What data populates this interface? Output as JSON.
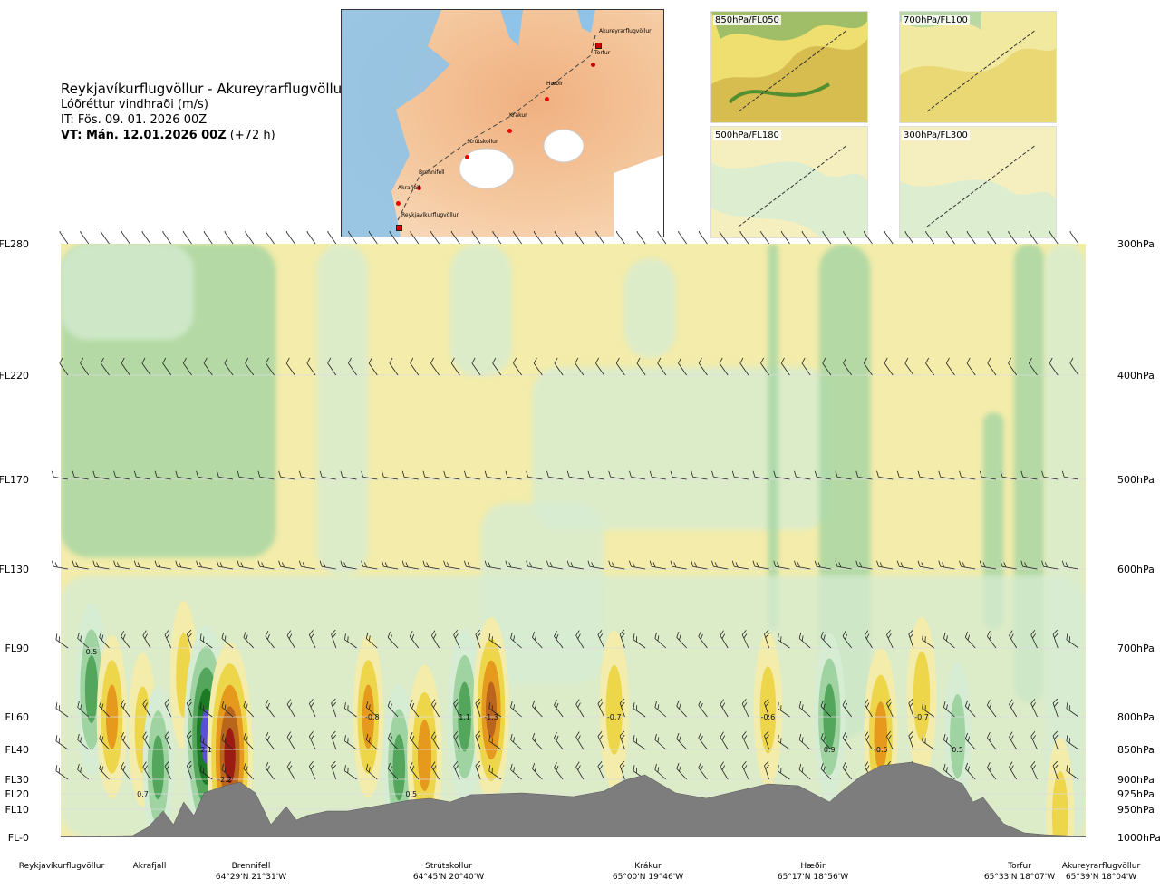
{
  "header": {
    "route": "Reykjavíkurflugvöllur - Akureyrarflugvöllur",
    "subtitle": "Lóðréttur vindhraði (m/s)",
    "it": "IT: Fös. 09. 01. 2026 00Z",
    "vt": "VT: Mán. 12.01.2026 00Z",
    "vt_rel": "(+72 h)"
  },
  "route_map": {
    "points": [
      "Akureyrarflugvöllur",
      "Torfur",
      "Hæðir",
      "Krákur",
      "Strútskollur",
      "Brennifell",
      "Akrafjall",
      "Reykjavíkurflugvöllur"
    ]
  },
  "level_maps": [
    {
      "label": "850hPa/FL050"
    },
    {
      "label": "700hPa/FL100"
    },
    {
      "label": "500hPa/FL180"
    },
    {
      "label": "300hPa/FL300"
    }
  ],
  "chart_data": {
    "type": "heatmap",
    "title": "Lóðréttur vindhraði (m/s)",
    "left_axis_labels": [
      "FL280",
      "FL220",
      "FL170",
      "FL130",
      "FL90",
      "FL60",
      "FL40",
      "FL30",
      "FL20",
      "FL10",
      "FL-0"
    ],
    "right_axis_labels": [
      "300hPa",
      "400hPa",
      "500hPa",
      "600hPa",
      "700hPa",
      "800hPa",
      "850hPa",
      "900hPa",
      "925hPa",
      "950hPa",
      "1000hPa"
    ],
    "pressure_levels_hpa": [
      300,
      400,
      500,
      600,
      700,
      800,
      850,
      900,
      925,
      950,
      1000
    ],
    "locations": [
      {
        "name": "Reykjavíkurflugvöllur",
        "coord": ""
      },
      {
        "name": "Akrafjall",
        "coord": ""
      },
      {
        "name": "Brennifell",
        "coord": "64°29'N 21°31'W"
      },
      {
        "name": "Strútskollur",
        "coord": "64°45'N 20°40'W"
      },
      {
        "name": "Krákur",
        "coord": "65°00'N 19°46'W"
      },
      {
        "name": "Hæðir",
        "coord": "65°17'N 18°56'W"
      },
      {
        "name": "Torfur",
        "coord": "65°33'N 18°07'W"
      },
      {
        "name": "Akureyrarflugvöllur",
        "coord": "65°39'N 18°04'W"
      }
    ],
    "annotations": [
      {
        "text": "0.5",
        "x_frac": 0.03,
        "p": 705
      },
      {
        "text": "2.1",
        "x_frac": 0.142,
        "p": 850
      },
      {
        "text": "-2.2",
        "x_frac": 0.16,
        "p": 900
      },
      {
        "text": "0.7",
        "x_frac": 0.08,
        "p": 925
      },
      {
        "text": "-0.8",
        "x_frac": 0.304,
        "p": 800
      },
      {
        "text": "0.5",
        "x_frac": 0.342,
        "p": 925
      },
      {
        "text": "1.1",
        "x_frac": 0.394,
        "p": 800
      },
      {
        "text": "-1.3",
        "x_frac": 0.42,
        "p": 800
      },
      {
        "text": "-0.7",
        "x_frac": 0.54,
        "p": 800
      },
      {
        "text": "-0.6",
        "x_frac": 0.69,
        "p": 800
      },
      {
        "text": "0.9",
        "x_frac": 0.75,
        "p": 850
      },
      {
        "text": "-0.5",
        "x_frac": 0.8,
        "p": 850
      },
      {
        "text": "-0.7",
        "x_frac": 0.84,
        "p": 800
      },
      {
        "text": "0.5",
        "x_frac": 0.875,
        "p": 850
      }
    ],
    "cells": [
      {
        "x_frac": 0.03,
        "p": 760,
        "v": 1.0
      },
      {
        "x_frac": 0.05,
        "p": 800,
        "v": -0.8
      },
      {
        "x_frac": 0.08,
        "p": 820,
        "v": -0.6
      },
      {
        "x_frac": 0.095,
        "p": 880,
        "v": 0.8
      },
      {
        "x_frac": 0.12,
        "p": 740,
        "v": -0.5
      },
      {
        "x_frac": 0.142,
        "p": 830,
        "v": 2.1
      },
      {
        "x_frac": 0.165,
        "p": 860,
        "v": -2.2
      },
      {
        "x_frac": 0.3,
        "p": 800,
        "v": -0.8
      },
      {
        "x_frac": 0.33,
        "p": 880,
        "v": 0.9
      },
      {
        "x_frac": 0.355,
        "p": 860,
        "v": -1.2
      },
      {
        "x_frac": 0.394,
        "p": 800,
        "v": 1.1
      },
      {
        "x_frac": 0.42,
        "p": 790,
        "v": -1.3
      },
      {
        "x_frac": 0.54,
        "p": 790,
        "v": -0.7
      },
      {
        "x_frac": 0.69,
        "p": 790,
        "v": -0.6
      },
      {
        "x_frac": 0.75,
        "p": 800,
        "v": 0.9
      },
      {
        "x_frac": 0.8,
        "p": 830,
        "v": -1.1
      },
      {
        "x_frac": 0.84,
        "p": 770,
        "v": -0.7
      },
      {
        "x_frac": 0.875,
        "p": 830,
        "v": 0.5
      },
      {
        "x_frac": 0.975,
        "p": 960,
        "v": -0.6
      }
    ],
    "color_scale": {
      "strong_up": "#5b4fd6",
      "up3": "#1b7a24",
      "up2": "#54a65d",
      "up1": "#9fd3a2",
      "up0": "#d6ecd3",
      "down0": "#f3ecaa",
      "down1": "#eed64a",
      "down2": "#e59a1e",
      "down3": "#b9651c",
      "strong_down": "#9a1c12",
      "terrain": "#7d7d7d"
    }
  }
}
